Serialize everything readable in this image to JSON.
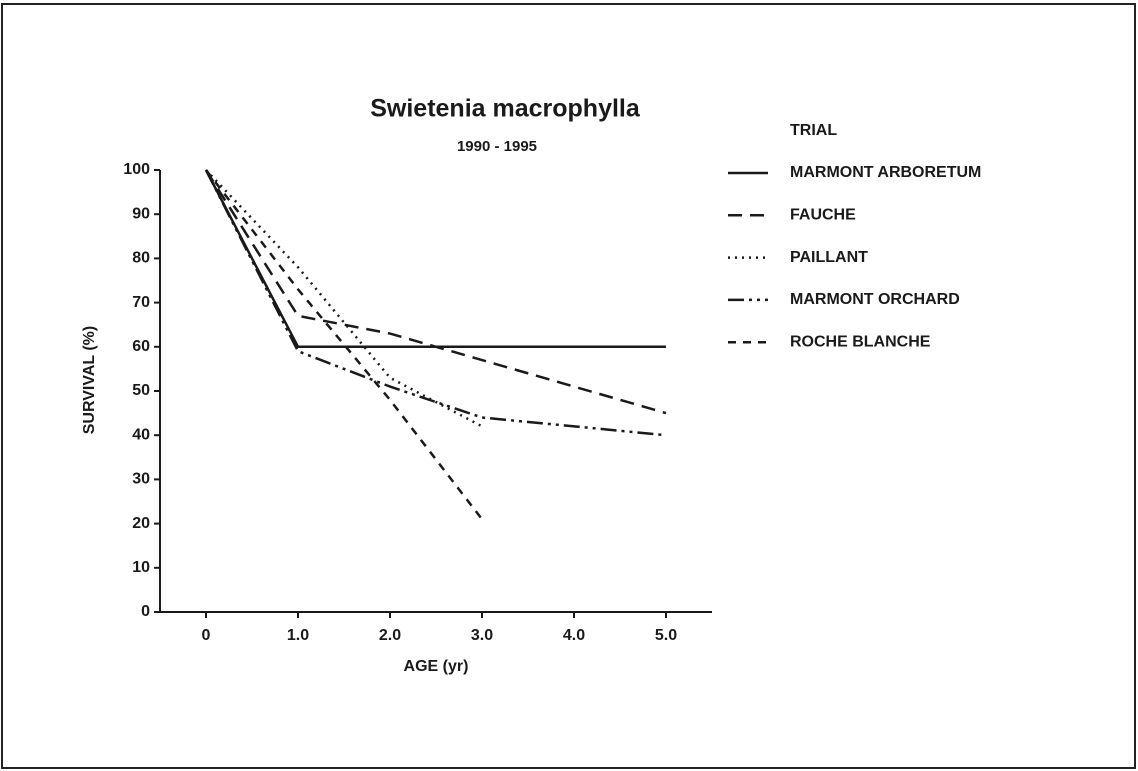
{
  "chart_data": {
    "type": "line",
    "title": "Swietenia macrophylla",
    "subtitle": "1990 - 1995",
    "x_label": "AGE (yr)",
    "y_label": "SURVIVAL (%)",
    "legend_title": "TRIAL",
    "xlim": [
      -0.5,
      5.5
    ],
    "xticks": [
      0,
      {
        "value": 1,
        "label": "1.0"
      },
      {
        "value": 2,
        "label": "2.0"
      },
      {
        "value": 3,
        "label": "3.0"
      },
      {
        "value": 4,
        "label": "4.0"
      },
      {
        "value": 5,
        "label": "5.0"
      }
    ],
    "ylim": [
      0,
      100
    ],
    "yticks": [
      0,
      10,
      20,
      30,
      40,
      50,
      60,
      70,
      80,
      90,
      100
    ],
    "grid": false,
    "legend": "right",
    "series": [
      {
        "name": "MARMONT ARBORETUM",
        "color": "#1a1a1a",
        "style": "solid",
        "x": [
          0,
          1,
          5
        ],
        "values": [
          100,
          60,
          60
        ]
      },
      {
        "name": "FAUCHE",
        "color": "#1a1a1a",
        "style": "dashed",
        "x": [
          0,
          1,
          2,
          3,
          5
        ],
        "values": [
          100,
          67,
          63,
          57,
          45
        ]
      },
      {
        "name": "PAILLANT",
        "color": "#1a1a1a",
        "style": "dotted",
        "x": [
          0,
          1,
          2,
          3
        ],
        "values": [
          100,
          78,
          53,
          42
        ]
      },
      {
        "name": "MARMONT ORCHARD",
        "color": "#1a1a1a",
        "style": "dashdot",
        "x": [
          0,
          1,
          2,
          3,
          5
        ],
        "values": [
          100,
          59,
          51,
          44,
          40
        ]
      },
      {
        "name": "ROCHE BLANCHE",
        "color": "#1a1a1a",
        "style": "shortdash",
        "x": [
          0,
          1,
          2,
          3
        ],
        "values": [
          100,
          73,
          48,
          21
        ]
      }
    ]
  }
}
